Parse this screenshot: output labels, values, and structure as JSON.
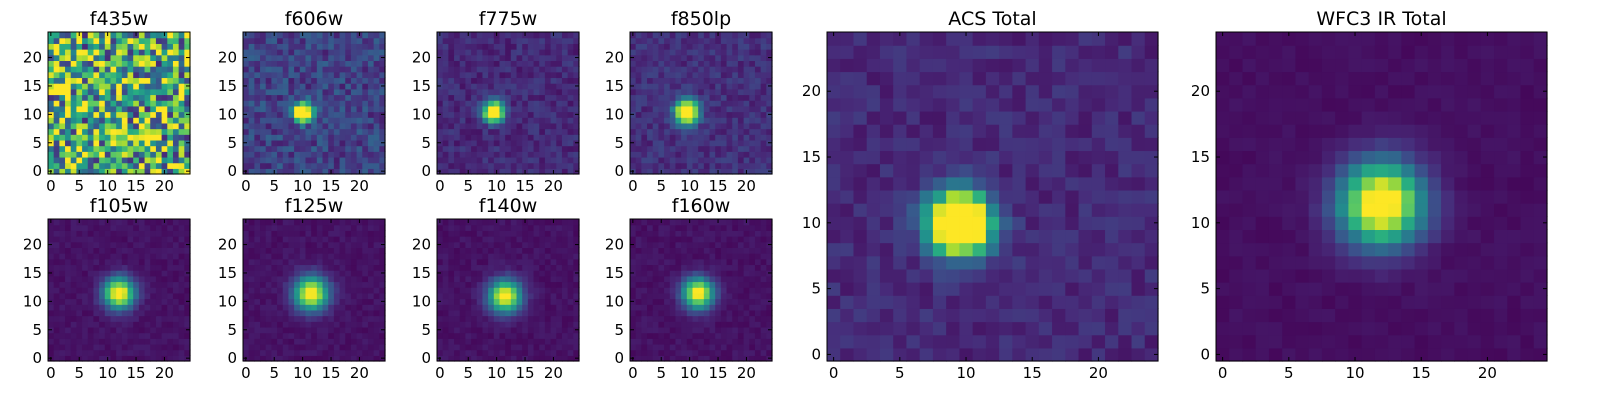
{
  "chart_data": [
    {
      "type": "heatmap",
      "title": "f435w",
      "style": "noise",
      "ylim": [
        0,
        24
      ],
      "xticks": [
        0,
        5,
        10,
        15,
        20
      ],
      "yticks": [
        0,
        5,
        10,
        15,
        20
      ],
      "source": {
        "center": [
          11,
          11
        ],
        "sigma": 2.0,
        "amplitude": 0.15
      },
      "background": 0.62,
      "noise": 0.5
    },
    {
      "type": "heatmap",
      "title": "f606w",
      "style": "psf",
      "ylim": [
        0,
        24
      ],
      "xticks": [
        0,
        5,
        10,
        15,
        20
      ],
      "yticks": [
        0,
        5,
        10,
        15,
        20
      ],
      "source": {
        "center": [
          10,
          10.5
        ],
        "sigma": 1.1,
        "amplitude": 1.35
      },
      "background": 0.2,
      "noise": 0.12
    },
    {
      "type": "heatmap",
      "title": "f775w",
      "style": "psf",
      "ylim": [
        0,
        24
      ],
      "xticks": [
        0,
        5,
        10,
        15,
        20
      ],
      "yticks": [
        0,
        5,
        10,
        15,
        20
      ],
      "source": {
        "center": [
          9.5,
          10.5
        ],
        "sigma": 1.2,
        "amplitude": 1.35
      },
      "background": 0.12,
      "noise": 0.07
    },
    {
      "type": "heatmap",
      "title": "f850lp",
      "style": "psf",
      "ylim": [
        0,
        24
      ],
      "xticks": [
        0,
        5,
        10,
        15,
        20
      ],
      "yticks": [
        0,
        5,
        10,
        15,
        20
      ],
      "source": {
        "center": [
          9.5,
          10.5
        ],
        "sigma": 1.4,
        "amplitude": 1.3
      },
      "background": 0.14,
      "noise": 0.07
    },
    {
      "type": "heatmap",
      "title": "f105w",
      "style": "psf",
      "ylim": [
        0,
        24
      ],
      "xticks": [
        0,
        5,
        10,
        15,
        20
      ],
      "yticks": [
        0,
        5,
        10,
        15,
        20
      ],
      "source": {
        "center": [
          12,
          11.5
        ],
        "sigma": 1.9,
        "amplitude": 1.05
      },
      "background": 0.05,
      "noise": 0.03
    },
    {
      "type": "heatmap",
      "title": "f125w",
      "style": "psf",
      "ylim": [
        0,
        24
      ],
      "xticks": [
        0,
        5,
        10,
        15,
        20
      ],
      "yticks": [
        0,
        5,
        10,
        15,
        20
      ],
      "source": {
        "center": [
          11.5,
          11.5
        ],
        "sigma": 2.1,
        "amplitude": 1.0
      },
      "background": 0.05,
      "noise": 0.03
    },
    {
      "type": "heatmap",
      "title": "f140w",
      "style": "psf",
      "ylim": [
        0,
        24
      ],
      "xticks": [
        0,
        5,
        10,
        15,
        20
      ],
      "yticks": [
        0,
        5,
        10,
        15,
        20
      ],
      "source": {
        "center": [
          11.5,
          11
        ],
        "sigma": 2.0,
        "amplitude": 1.0
      },
      "background": 0.05,
      "noise": 0.03
    },
    {
      "type": "heatmap",
      "title": "f160w",
      "style": "psf",
      "ylim": [
        0,
        24
      ],
      "xticks": [
        0,
        5,
        10,
        15,
        20
      ],
      "yticks": [
        0,
        5,
        10,
        15,
        20
      ],
      "source": {
        "center": [
          11.5,
          11.5
        ],
        "sigma": 1.9,
        "amplitude": 1.0
      },
      "background": 0.05,
      "noise": 0.03
    },
    {
      "type": "heatmap",
      "title": "ACS Total",
      "style": "psf",
      "ylim": [
        0,
        24
      ],
      "xticks": [
        0,
        5,
        10,
        15,
        20
      ],
      "yticks": [
        0,
        5,
        10,
        15,
        20
      ],
      "source": {
        "center": [
          9.5,
          10
        ],
        "sigma": 1.6,
        "amplitude": 1.6
      },
      "background": 0.12,
      "noise": 0.06
    },
    {
      "type": "heatmap",
      "title": "WFC3 IR Total",
      "style": "psf",
      "ylim": [
        0,
        24
      ],
      "xticks": [
        0,
        5,
        10,
        15,
        20
      ],
      "yticks": [
        0,
        5,
        10,
        15,
        20
      ],
      "source": {
        "center": [
          12,
          11.5
        ],
        "sigma": 2.2,
        "amplitude": 1.1
      },
      "background": 0.04,
      "noise": 0.02
    }
  ],
  "colormap": "viridis"
}
